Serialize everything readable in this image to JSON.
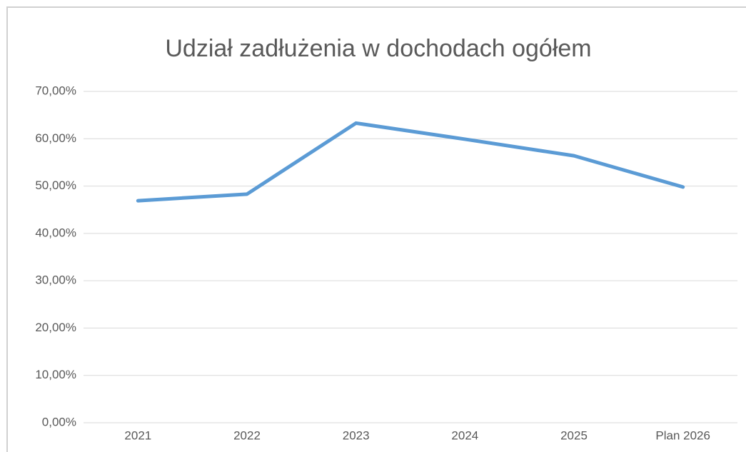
{
  "chart_data": {
    "type": "line",
    "title": "Udział zadłużenia w dochodach ogółem",
    "categories": [
      "2021",
      "2022",
      "2023",
      "2024",
      "2025",
      "Plan 2026"
    ],
    "series": [
      {
        "name": "Udział zadłużenia",
        "color": "#5b9bd5",
        "values": [
          46.9,
          48.3,
          63.3,
          59.9,
          56.4,
          49.8
        ]
      }
    ],
    "ylim": [
      0,
      70
    ],
    "yticks": [
      {
        "value": 0,
        "label": "0,00%"
      },
      {
        "value": 10,
        "label": "10,00%"
      },
      {
        "value": 20,
        "label": "20,00%"
      },
      {
        "value": 30,
        "label": "30,00%"
      },
      {
        "value": 40,
        "label": "40,00%"
      },
      {
        "value": 50,
        "label": "50,00%"
      },
      {
        "value": 60,
        "label": "60,00%"
      },
      {
        "value": 70,
        "label": "70,00%"
      }
    ],
    "grid": true
  }
}
